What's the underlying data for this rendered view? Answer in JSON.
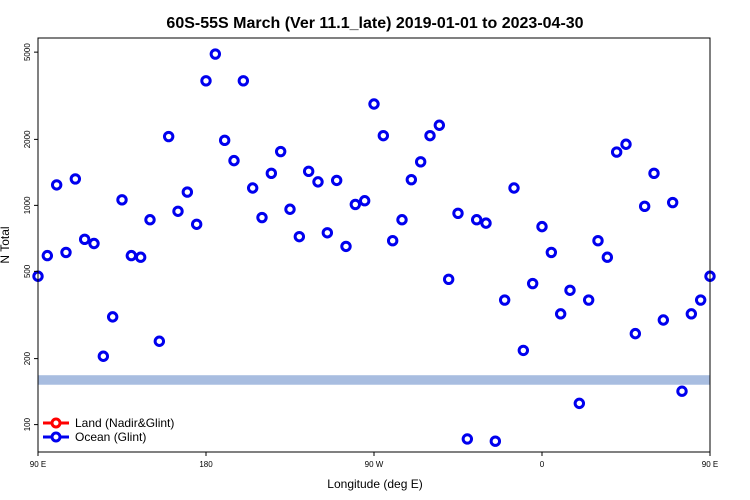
{
  "chart_data": {
    "type": "scatter",
    "title": "60S-55S March (Ver 11.1_late)   2019-01-01 to 2023-04-30",
    "xlabel": "Longitude (deg E)",
    "ylabel": "N Total",
    "y_scale": "log",
    "xlim": [
      90,
      450
    ],
    "ylim": [
      75,
      5800
    ],
    "x_ticks": [
      {
        "value": 90,
        "label": "90 E"
      },
      {
        "value": 180,
        "label": "180"
      },
      {
        "value": 270,
        "label": "90 W"
      },
      {
        "value": 360,
        "label": "0"
      },
      {
        "value": 450,
        "label": "90 E"
      },
      {
        "value": 540,
        "label": "180"
      }
    ],
    "y_ticks": [
      {
        "value": 100,
        "label": "100"
      },
      {
        "value": 200,
        "label": "200"
      },
      {
        "value": 500,
        "label": "500"
      },
      {
        "value": 1000,
        "label": "1000"
      },
      {
        "value": 2000,
        "label": "2000"
      },
      {
        "value": 5000,
        "label": "5000"
      }
    ],
    "band": {
      "from": 152,
      "to": 168,
      "color": "#a8bde0"
    },
    "legend": {
      "position": "bottom-left"
    },
    "series": [
      {
        "name": "Land (Nadir&Glint)",
        "color": "#ff0000",
        "points": []
      },
      {
        "name": "Ocean (Glint)",
        "color": "#0000ee",
        "points": [
          [
            90,
            475
          ],
          [
            95,
            590
          ],
          [
            100,
            1240
          ],
          [
            105,
            610
          ],
          [
            110,
            1320
          ],
          [
            115,
            700
          ],
          [
            120,
            670
          ],
          [
            125,
            205
          ],
          [
            130,
            310
          ],
          [
            135,
            1060
          ],
          [
            140,
            590
          ],
          [
            145,
            580
          ],
          [
            150,
            860
          ],
          [
            155,
            240
          ],
          [
            160,
            2060
          ],
          [
            165,
            940
          ],
          [
            170,
            1150
          ],
          [
            175,
            820
          ],
          [
            180,
            3700
          ],
          [
            185,
            4900
          ],
          [
            190,
            1980
          ],
          [
            195,
            1600
          ],
          [
            200,
            3700
          ],
          [
            205,
            1200
          ],
          [
            210,
            880
          ],
          [
            215,
            1400
          ],
          [
            220,
            1760
          ],
          [
            225,
            960
          ],
          [
            230,
            720
          ],
          [
            235,
            1430
          ],
          [
            240,
            1280
          ],
          [
            245,
            750
          ],
          [
            250,
            1300
          ],
          [
            255,
            650
          ],
          [
            260,
            1010
          ],
          [
            265,
            1050
          ],
          [
            270,
            2900
          ],
          [
            275,
            2080
          ],
          [
            280,
            690
          ],
          [
            285,
            860
          ],
          [
            290,
            1310
          ],
          [
            295,
            1580
          ],
          [
            300,
            2080
          ],
          [
            305,
            2320
          ],
          [
            310,
            460
          ],
          [
            315,
            920
          ],
          [
            320,
            86
          ],
          [
            325,
            860
          ],
          [
            330,
            830
          ],
          [
            335,
            84
          ],
          [
            340,
            370
          ],
          [
            345,
            1200
          ],
          [
            350,
            218
          ],
          [
            355,
            440
          ],
          [
            360,
            800
          ],
          [
            365,
            610
          ],
          [
            370,
            320
          ],
          [
            375,
            410
          ],
          [
            380,
            125
          ],
          [
            385,
            370
          ],
          [
            390,
            690
          ],
          [
            395,
            580
          ],
          [
            400,
            1750
          ],
          [
            405,
            1900
          ],
          [
            410,
            260
          ],
          [
            415,
            990
          ],
          [
            420,
            1400
          ],
          [
            425,
            300
          ],
          [
            430,
            1030
          ],
          [
            435,
            142
          ],
          [
            440,
            320
          ],
          [
            445,
            370
          ],
          [
            450,
            475
          ]
        ]
      }
    ]
  }
}
